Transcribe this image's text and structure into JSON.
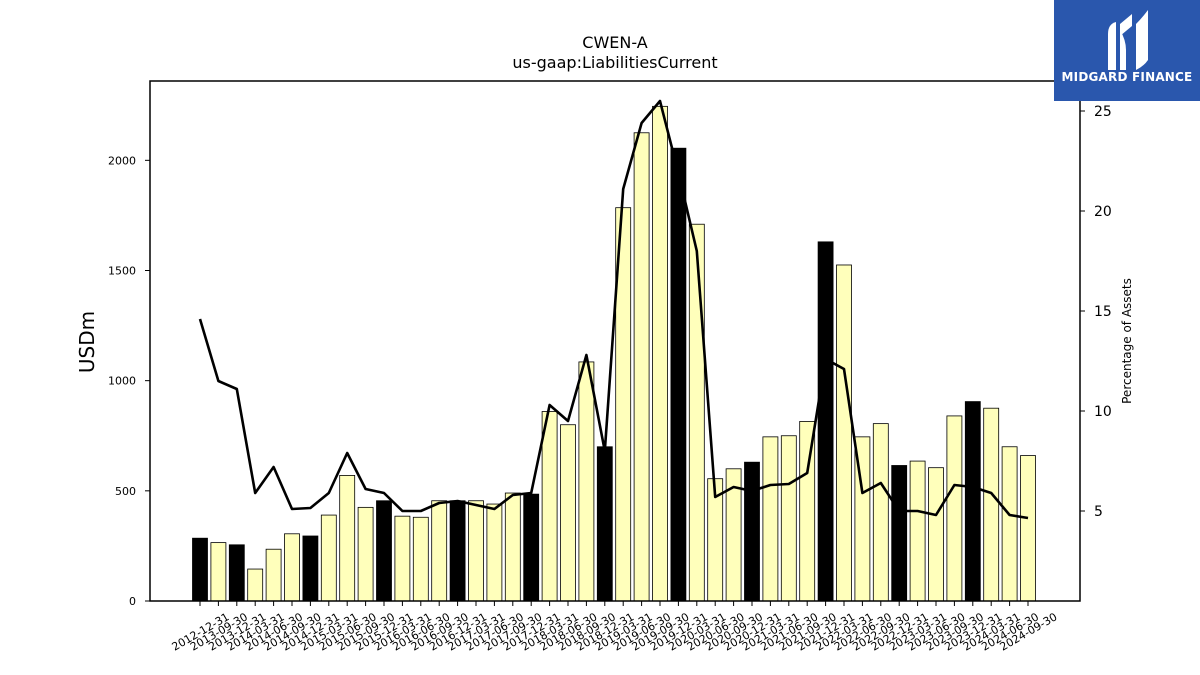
{
  "logo": {
    "text": "MIDGARD FINANCE",
    "icon": "midgard-logo-icon",
    "background": "#2a57ad"
  },
  "chart_data": {
    "type": "bar",
    "title": "CWEN-A",
    "subtitle": "us-gaap:LiabilitiesCurrent",
    "ylabel": "USDm",
    "ylabel_right": "Percentage of Assets",
    "ylim": [
      0,
      2360
    ],
    "ylim_right": [
      0.5,
      26.5
    ],
    "yticks": [
      0,
      500,
      1000,
      1500,
      2000
    ],
    "yticks_right": [
      5,
      10,
      15,
      20,
      25
    ],
    "grid": false,
    "legend": "none",
    "colors": {
      "annual_bar": "#000000",
      "quarter_bar": "#ffffbb",
      "line": "#000000"
    },
    "categories": [
      "2012-12-31",
      "2013-09-30",
      "2013-12-31",
      "2014-03-31",
      "2014-06-30",
      "2014-09-30",
      "2014-12-31",
      "2015-03-31",
      "2015-06-30",
      "2015-09-30",
      "2015-12-31",
      "2016-03-31",
      "2016-06-30",
      "2016-09-30",
      "2016-12-31",
      "2017-03-31",
      "2017-06-30",
      "2017-09-30",
      "2017-12-31",
      "2018-03-31",
      "2018-06-30",
      "2018-09-30",
      "2018-12-31",
      "2019-03-31",
      "2019-06-30",
      "2019-09-30",
      "2019-12-31",
      "2020-03-31",
      "2020-06-30",
      "2020-09-30",
      "2020-12-31",
      "2021-03-31",
      "2021-06-30",
      "2021-09-30",
      "2021-12-31",
      "2022-03-31",
      "2022-06-30",
      "2022-09-30",
      "2022-12-31",
      "2023-03-31",
      "2023-06-30",
      "2023-09-30",
      "2023-12-31",
      "2024-03-31",
      "2024-06-30",
      "2024-09-30"
    ],
    "series": [
      {
        "type": "bar",
        "values": [
          285,
          265,
          255,
          145,
          235,
          305,
          295,
          390,
          570,
          425,
          455,
          385,
          380,
          455,
          455,
          455,
          440,
          490,
          485,
          860,
          800,
          1085,
          700,
          1785,
          2125,
          2245,
          2055,
          1710,
          555,
          600,
          630,
          745,
          750,
          815,
          1630,
          1525,
          745,
          805,
          615,
          635,
          605,
          840,
          905,
          875,
          700,
          660
        ],
        "annual": [
          true,
          false,
          true,
          false,
          false,
          false,
          true,
          false,
          false,
          false,
          true,
          false,
          false,
          false,
          true,
          false,
          false,
          false,
          true,
          false,
          false,
          false,
          true,
          false,
          false,
          false,
          true,
          false,
          false,
          false,
          true,
          false,
          false,
          false,
          true,
          false,
          false,
          false,
          true,
          false,
          false,
          false,
          true,
          false,
          false,
          false
        ]
      },
      {
        "type": "line",
        "axis": "right",
        "values": [
          14.6,
          11.5,
          11.1,
          5.9,
          7.2,
          5.1,
          5.15,
          5.9,
          7.9,
          6.1,
          5.9,
          5.0,
          5.0,
          5.4,
          5.5,
          5.3,
          5.1,
          5.8,
          5.9,
          10.3,
          9.5,
          12.8,
          8.0,
          21.1,
          24.4,
          25.5,
          21.9,
          18.0,
          5.7,
          6.2,
          6.0,
          6.3,
          6.35,
          6.9,
          12.6,
          12.1,
          5.9,
          6.4,
          5.0,
          5.0,
          4.8,
          6.3,
          6.2,
          5.9,
          4.8,
          4.65
        ]
      }
    ]
  }
}
